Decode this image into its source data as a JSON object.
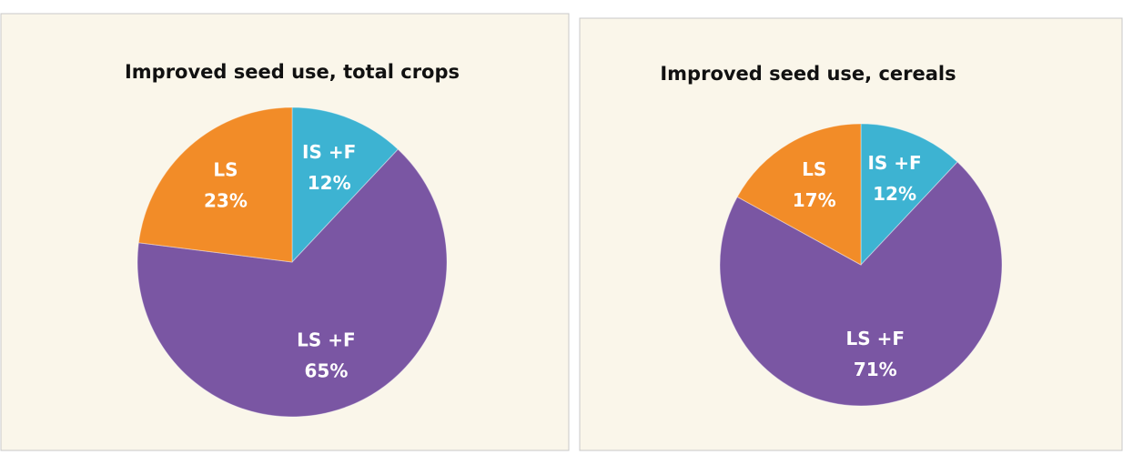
{
  "chart_data": [
    {
      "type": "pie",
      "title": "Improved seed use, total crops",
      "categories": [
        "IS +F",
        "LS +F",
        "LS"
      ],
      "values": [
        12,
        65,
        23
      ],
      "value_labels": [
        "12%",
        "65%",
        "23%"
      ],
      "colors": [
        "#3db3d2",
        "#7a56a3",
        "#f28c28"
      ]
    },
    {
      "type": "pie",
      "title": "Improved seed use, cereals",
      "categories": [
        "IS +F",
        "LS +F",
        "LS"
      ],
      "values": [
        12,
        71,
        17
      ],
      "value_labels": [
        "12%",
        "71%",
        "17%"
      ],
      "colors": [
        "#3db3d2",
        "#7a56a3",
        "#f28c28"
      ]
    }
  ]
}
